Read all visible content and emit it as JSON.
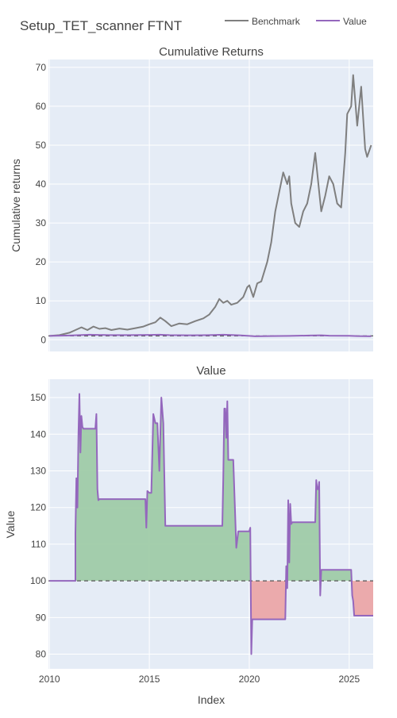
{
  "title": "Setup_TET_scanner FTNT",
  "legend": {
    "placement": "top-right",
    "items": [
      {
        "label": "Benchmark",
        "color": "#7f7f7f"
      },
      {
        "label": "Value",
        "color": "#9467bd"
      }
    ]
  },
  "colors": {
    "plot_bg": "#e5ecf6",
    "grid": "#ffffff",
    "benchmark": "#7f7f7f",
    "value": "#9467bd",
    "gain_fill": "#9fcba8",
    "loss_fill": "#eba6a8",
    "baseline": "#555555",
    "text": "#444444"
  },
  "chart_data": [
    {
      "type": "line",
      "title": "Cumulative Returns",
      "xlabel": "",
      "ylabel": "Cumulative returns",
      "xlim": [
        2009.95,
        2026.2
      ],
      "ylim": [
        -3,
        72
      ],
      "yticks": [
        0,
        10,
        20,
        30,
        40,
        50,
        60,
        70
      ],
      "grid": true,
      "baseline": 1,
      "series": [
        {
          "name": "Benchmark",
          "x": [
            2010.0,
            2010.5,
            2011.0,
            2011.3,
            2011.6,
            2011.9,
            2012.2,
            2012.5,
            2012.8,
            2013.1,
            2013.5,
            2013.9,
            2014.3,
            2014.7,
            2015.0,
            2015.3,
            2015.55,
            2015.8,
            2016.1,
            2016.5,
            2016.9,
            2017.3,
            2017.7,
            2018.0,
            2018.3,
            2018.5,
            2018.7,
            2018.9,
            2019.1,
            2019.4,
            2019.7,
            2019.9,
            2020.0,
            2020.2,
            2020.4,
            2020.6,
            2020.9,
            2021.1,
            2021.3,
            2021.5,
            2021.7,
            2021.9,
            2022.0,
            2022.1,
            2022.3,
            2022.5,
            2022.7,
            2022.9,
            2023.1,
            2023.3,
            2023.5,
            2023.6,
            2023.8,
            2024.0,
            2024.2,
            2024.4,
            2024.6,
            2024.8,
            2024.9,
            2025.1,
            2025.2,
            2025.4,
            2025.6,
            2025.8,
            2025.9,
            2026.1
          ],
          "values": [
            1.0,
            1.2,
            1.8,
            2.5,
            3.2,
            2.5,
            3.4,
            2.8,
            3.0,
            2.5,
            2.9,
            2.6,
            3.0,
            3.4,
            4.0,
            4.5,
            5.7,
            4.8,
            3.5,
            4.2,
            4.0,
            4.8,
            5.5,
            6.5,
            8.5,
            10.5,
            9.5,
            10.0,
            9.0,
            9.5,
            11.0,
            13.5,
            14.0,
            11.0,
            14.5,
            15.0,
            20.0,
            25.0,
            33.0,
            38.0,
            43.0,
            40.0,
            42.0,
            35.0,
            30.0,
            29.0,
            33.0,
            35.0,
            40.0,
            48.0,
            38.0,
            33.0,
            37.0,
            42.0,
            40.0,
            35.0,
            34.0,
            48.0,
            58.0,
            60.0,
            68.0,
            55.0,
            65.0,
            49.0,
            47.0,
            50.0
          ]
        },
        {
          "name": "Value",
          "x": [
            2010.0,
            2011.0,
            2012.0,
            2013.0,
            2014.0,
            2015.0,
            2015.5,
            2016.0,
            2017.0,
            2018.0,
            2018.7,
            2019.0,
            2019.5,
            2020.0,
            2020.3,
            2021.0,
            2022.0,
            2023.0,
            2023.6,
            2024.0,
            2025.0,
            2025.4,
            2026.1
          ],
          "values": [
            1.0,
            1.1,
            1.3,
            1.2,
            1.2,
            1.25,
            1.3,
            1.2,
            1.15,
            1.2,
            1.3,
            1.25,
            1.15,
            1.0,
            0.9,
            0.95,
            1.0,
            1.1,
            1.15,
            1.05,
            1.03,
            0.95,
            0.9
          ]
        }
      ]
    },
    {
      "type": "area",
      "title": "Value",
      "xlabel": "Index",
      "ylabel": "Value",
      "xlim": [
        2009.95,
        2026.2
      ],
      "ylim": [
        76,
        155
      ],
      "xticks": [
        2010,
        2015,
        2020,
        2025
      ],
      "xticklabels": [
        "2010",
        "2015",
        "2020",
        "2025"
      ],
      "yticks": [
        80,
        90,
        100,
        110,
        120,
        130,
        140,
        150
      ],
      "grid": true,
      "baseline": 100,
      "series": [
        {
          "name": "Value",
          "x": [
            2010.0,
            2011.3,
            2011.3,
            2011.35,
            2011.4,
            2011.45,
            2011.5,
            2011.55,
            2011.6,
            2011.65,
            2011.7,
            2011.75,
            2011.8,
            2012.3,
            2012.35,
            2012.4,
            2012.45,
            2012.5,
            2014.0,
            2014.8,
            2014.85,
            2014.9,
            2015.0,
            2015.1,
            2015.2,
            2015.3,
            2015.4,
            2015.5,
            2015.6,
            2015.7,
            2015.8,
            2018.6,
            2018.65,
            2018.7,
            2018.75,
            2018.8,
            2018.85,
            2018.9,
            2018.95,
            2019.0,
            2019.1,
            2019.2,
            2019.35,
            2019.45,
            2019.5,
            2019.55,
            2019.6,
            2019.7,
            2019.9,
            2020.0,
            2020.05,
            2020.1,
            2020.15,
            2020.2,
            2021.5,
            2021.8,
            2021.85,
            2021.9,
            2021.95,
            2022.0,
            2022.05,
            2022.1,
            2022.15,
            2022.2,
            2023.2,
            2023.3,
            2023.35,
            2023.4,
            2023.45,
            2023.5,
            2023.55,
            2023.6,
            2024.0,
            2025.0,
            2025.1,
            2025.15,
            2025.2,
            2025.25,
            2025.35,
            2026.2
          ],
          "values": [
            100,
            100,
            113,
            128,
            120,
            140,
            151,
            135,
            145,
            142,
            141.5,
            141.5,
            141.5,
            141.5,
            145.5,
            125,
            122,
            122.3,
            122.3,
            122.3,
            114.5,
            124.5,
            124,
            124,
            145.5,
            143,
            143,
            130,
            150,
            143,
            115,
            115,
            115,
            128,
            147,
            147,
            139,
            149,
            133,
            133,
            133,
            133,
            109,
            113.5,
            113.5,
            113.5,
            113.5,
            113.5,
            113.5,
            113.5,
            114.5,
            80,
            89.5,
            89.5,
            89.5,
            89.5,
            104,
            98,
            122,
            105,
            121,
            115.5,
            116,
            116,
            116,
            116,
            127.5,
            125,
            125,
            127,
            96,
            103,
            103,
            103,
            103,
            96,
            94.5,
            90.5,
            90.5,
            90.5
          ]
        }
      ]
    }
  ]
}
